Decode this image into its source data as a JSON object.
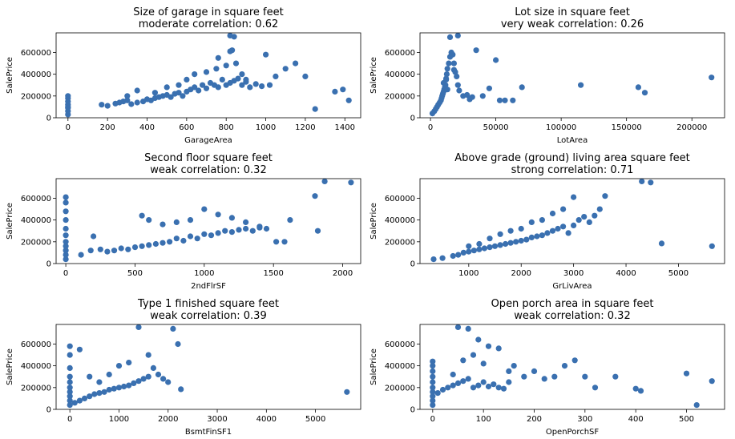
{
  "chart_data": [
    {
      "type": "scatter",
      "title_line1": "Size of garage in square feet",
      "title_line2": "moderate correlation: 0.62",
      "xlabel": "GarageArea",
      "ylabel": "SalePrice",
      "xlim": [
        -60,
        1480
      ],
      "ylim": [
        0,
        780000
      ],
      "xticks": [
        0,
        200,
        400,
        600,
        800,
        1000,
        1200,
        1400
      ],
      "yticks": [
        0,
        200000,
        400000,
        600000
      ],
      "color": "#3a70b0",
      "x": [
        0,
        0,
        0,
        0,
        0,
        0,
        0,
        0,
        170,
        200,
        240,
        260,
        280,
        300,
        320,
        350,
        380,
        400,
        420,
        440,
        460,
        480,
        500,
        520,
        540,
        560,
        580,
        600,
        620,
        640,
        660,
        680,
        700,
        720,
        740,
        760,
        780,
        800,
        820,
        840,
        860,
        880,
        900,
        920,
        950,
        980,
        1000,
        1020,
        1050,
        1100,
        1150,
        1200,
        1250,
        1350,
        1390,
        1420,
        820,
        840,
        830,
        760,
        820,
        880,
        300,
        350,
        440,
        500,
        560,
        600,
        640,
        700,
        750,
        800,
        850,
        900
      ],
      "y": [
        30000,
        60000,
        90000,
        120000,
        150000,
        180000,
        200000,
        100000,
        120000,
        110000,
        130000,
        140000,
        150000,
        160000,
        125000,
        140000,
        150000,
        170000,
        160000,
        180000,
        190000,
        200000,
        210000,
        190000,
        220000,
        230000,
        200000,
        240000,
        260000,
        280000,
        250000,
        300000,
        270000,
        320000,
        300000,
        280000,
        350000,
        300000,
        320000,
        340000,
        360000,
        300000,
        330000,
        280000,
        310000,
        290000,
        580000,
        300000,
        380000,
        450000,
        500000,
        380000,
        80000,
        240000,
        260000,
        160000,
        755000,
        745000,
        620000,
        550000,
        610000,
        400000,
        200000,
        250000,
        230000,
        280000,
        300000,
        350000,
        400000,
        420000,
        450000,
        480000,
        500000,
        350000
      ]
    },
    {
      "type": "scatter",
      "title_line1": "Lot size in square feet",
      "title_line2": "very weak correlation: 0.26",
      "xlabel": "LotArea",
      "ylabel": "SalePrice",
      "xlim": [
        -8000,
        225000
      ],
      "ylim": [
        0,
        780000
      ],
      "xticks": [
        0,
        50000,
        100000,
        150000,
        200000
      ],
      "yticks": [
        0,
        200000,
        400000,
        600000
      ],
      "color": "#3a70b0",
      "x": [
        1500,
        3000,
        4000,
        5000,
        6000,
        7000,
        8000,
        8500,
        9000,
        9500,
        10000,
        10500,
        11000,
        11500,
        12000,
        12500,
        13000,
        14000,
        15000,
        16000,
        17000,
        18000,
        19000,
        20000,
        21000,
        22000,
        25000,
        28000,
        30000,
        32000,
        35000,
        40000,
        45000,
        50000,
        53000,
        57000,
        63000,
        70000,
        115000,
        159000,
        164000,
        215000,
        15000,
        21000,
        18000,
        12000,
        10000,
        13000
      ],
      "y": [
        40000,
        60000,
        80000,
        100000,
        120000,
        140000,
        160000,
        180000,
        200000,
        220000,
        240000,
        260000,
        280000,
        300000,
        350000,
        400000,
        450000,
        500000,
        560000,
        600000,
        580000,
        500000,
        420000,
        380000,
        300000,
        250000,
        200000,
        210000,
        170000,
        190000,
        620000,
        200000,
        270000,
        530000,
        160000,
        160000,
        160000,
        280000,
        300000,
        280000,
        230000,
        370000,
        740000,
        755000,
        440000,
        360000,
        320000,
        260000
      ]
    },
    {
      "type": "scatter",
      "title_line1": "Second floor square feet",
      "title_line2": "weak correlation: 0.32",
      "xlabel": "2ndFlrSF",
      "ylabel": "SalePrice",
      "xlim": [
        -70,
        2130
      ],
      "ylim": [
        0,
        780000
      ],
      "xticks": [
        0,
        500,
        1000,
        1500,
        2000
      ],
      "yticks": [
        0,
        200000,
        400000,
        600000
      ],
      "color": "#3a70b0",
      "x": [
        0,
        0,
        0,
        0,
        0,
        0,
        0,
        0,
        0,
        0,
        0,
        110,
        180,
        200,
        250,
        300,
        350,
        400,
        450,
        500,
        550,
        600,
        650,
        700,
        750,
        800,
        850,
        900,
        950,
        1000,
        1050,
        1100,
        1150,
        1200,
        1250,
        1300,
        1350,
        1400,
        1450,
        1520,
        1580,
        1620,
        1800,
        1820,
        1870,
        2060,
        550,
        600,
        700,
        800,
        900,
        1000,
        1100,
        1200,
        1300,
        1400
      ],
      "y": [
        40000,
        80000,
        120000,
        160000,
        200000,
        260000,
        320000,
        400000,
        480000,
        560000,
        610000,
        80000,
        120000,
        250000,
        130000,
        110000,
        120000,
        140000,
        130000,
        150000,
        160000,
        170000,
        180000,
        190000,
        200000,
        230000,
        210000,
        250000,
        230000,
        270000,
        260000,
        280000,
        300000,
        290000,
        310000,
        320000,
        300000,
        340000,
        320000,
        200000,
        200000,
        400000,
        620000,
        300000,
        755000,
        745000,
        440000,
        400000,
        360000,
        380000,
        400000,
        500000,
        450000,
        420000,
        380000,
        330000
      ]
    },
    {
      "type": "scatter",
      "title_line1": "Above grade (ground) living area square feet",
      "title_line2": "strong correlation: 0.71",
      "xlabel": "GrLivArea",
      "ylabel": "SalePrice",
      "xlim": [
        70,
        5880
      ],
      "ylim": [
        0,
        780000
      ],
      "xticks": [
        1000,
        2000,
        3000,
        4000,
        5000
      ],
      "yticks": [
        0,
        200000,
        400000,
        600000
      ],
      "color": "#3a70b0",
      "x": [
        330,
        500,
        700,
        800,
        900,
        1000,
        1100,
        1200,
        1300,
        1400,
        1500,
        1600,
        1700,
        1800,
        1900,
        2000,
        2100,
        2200,
        2300,
        2400,
        2500,
        2600,
        2700,
        2800,
        2900,
        3000,
        3100,
        3200,
        3300,
        3400,
        3500,
        3600,
        4300,
        4470,
        4680,
        5640,
        1000,
        1200,
        1400,
        1600,
        1800,
        2000,
        2200,
        2400,
        2600,
        2800,
        3000
      ],
      "y": [
        40000,
        50000,
        70000,
        80000,
        100000,
        110000,
        120000,
        130000,
        140000,
        150000,
        160000,
        170000,
        180000,
        190000,
        200000,
        210000,
        220000,
        240000,
        250000,
        260000,
        280000,
        300000,
        320000,
        340000,
        280000,
        350000,
        400000,
        430000,
        380000,
        440000,
        500000,
        620000,
        755000,
        745000,
        185000,
        160000,
        160000,
        180000,
        230000,
        270000,
        300000,
        320000,
        380000,
        400000,
        460000,
        500000,
        610000
      ]
    },
    {
      "type": "scatter",
      "title_line1": "Type 1 finished square feet",
      "title_line2": "weak correlation: 0.39",
      "xlabel": "BsmtFinSF1",
      "ylabel": "SalePrice",
      "xlim": [
        -280,
        5920
      ],
      "ylim": [
        0,
        780000
      ],
      "xticks": [
        0,
        1000,
        2000,
        3000,
        4000,
        5000
      ],
      "yticks": [
        0,
        200000,
        400000,
        600000
      ],
      "color": "#3a70b0",
      "x": [
        0,
        0,
        0,
        0,
        0,
        0,
        0,
        0,
        0,
        0,
        100,
        200,
        300,
        400,
        500,
        600,
        700,
        800,
        900,
        1000,
        1100,
        1200,
        1300,
        1400,
        1500,
        1600,
        1700,
        1800,
        1900,
        2000,
        2100,
        2200,
        2260,
        5640,
        200,
        400,
        600,
        800,
        1000,
        1200,
        1400,
        1600
      ],
      "y": [
        40000,
        80000,
        120000,
        160000,
        200000,
        250000,
        300000,
        380000,
        500000,
        580000,
        60000,
        80000,
        100000,
        120000,
        140000,
        150000,
        160000,
        180000,
        190000,
        200000,
        210000,
        220000,
        240000,
        260000,
        280000,
        300000,
        380000,
        320000,
        280000,
        250000,
        740000,
        600000,
        185000,
        160000,
        550000,
        300000,
        250000,
        320000,
        400000,
        430000,
        755000,
        500000
      ]
    },
    {
      "type": "scatter",
      "title_line1": "Open porch area in square feet",
      "title_line2": "weak correlation: 0.32",
      "xlabel": "OpenPorchSF",
      "ylabel": "SalePrice",
      "xlim": [
        -25,
        575
      ],
      "ylim": [
        0,
        780000
      ],
      "xticks": [
        0,
        100,
        200,
        300,
        400,
        500
      ],
      "yticks": [
        0,
        200000,
        400000,
        600000
      ],
      "color": "#3a70b0",
      "x": [
        0,
        0,
        0,
        0,
        0,
        0,
        0,
        0,
        0,
        0,
        10,
        20,
        30,
        40,
        50,
        60,
        70,
        80,
        90,
        100,
        110,
        120,
        130,
        140,
        150,
        160,
        180,
        200,
        220,
        240,
        260,
        280,
        300,
        320,
        360,
        400,
        410,
        500,
        520,
        550,
        50,
        70,
        90,
        110,
        130,
        60,
        80,
        40,
        100,
        150
      ],
      "y": [
        40000,
        80000,
        120000,
        160000,
        200000,
        250000,
        300000,
        350000,
        400000,
        440000,
        150000,
        180000,
        200000,
        220000,
        240000,
        260000,
        280000,
        200000,
        220000,
        250000,
        210000,
        230000,
        200000,
        190000,
        250000,
        400000,
        300000,
        350000,
        280000,
        300000,
        400000,
        450000,
        300000,
        200000,
        300000,
        190000,
        170000,
        330000,
        40000,
        260000,
        755000,
        740000,
        640000,
        580000,
        560000,
        450000,
        500000,
        320000,
        420000,
        350000
      ]
    }
  ]
}
